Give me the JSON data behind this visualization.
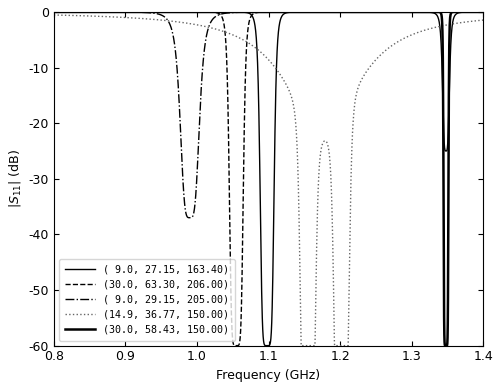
{
  "xlabel": "Frequency (GHz)",
  "ylabel": "|S_{11}| (dB)",
  "xlim": [
    0.8,
    1.4
  ],
  "ylim": [
    -60,
    0
  ],
  "yticks": [
    0,
    -10,
    -20,
    -30,
    -40,
    -50,
    -60
  ],
  "xticks": [
    0.8,
    0.9,
    1.0,
    1.1,
    1.2,
    1.3,
    1.4
  ],
  "n_points": 2001,
  "line_styles": [
    "solid",
    "dashed",
    "dashdot",
    "dotted",
    "solid"
  ],
  "line_widths": [
    1.0,
    1.0,
    1.0,
    1.0,
    1.8
  ],
  "colors": [
    "#000000",
    "#000000",
    "#000000",
    "#666666",
    "#000000"
  ],
  "labels": [
    "( 9.0, 27.15, 163.40)",
    "(30.0, 63.30, 206.00)",
    "( 9.0, 29.15, 205.00)",
    "(14.9, 36.77, 150.00)",
    "(30.0, 58.43, 150.00)"
  ]
}
